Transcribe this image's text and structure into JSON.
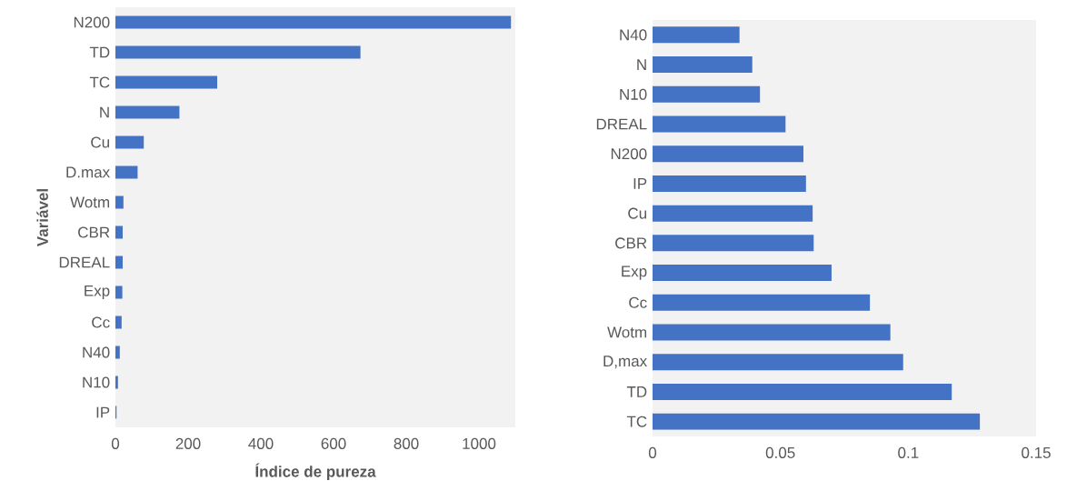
{
  "chart_data": [
    {
      "type": "bar",
      "orientation": "horizontal",
      "xlabel": "Índice de pureza",
      "ylabel": "Variável",
      "categories": [
        "N200",
        "TD",
        "TC",
        "N",
        "Cu",
        "D.max",
        "Wotm",
        "CBR",
        "DREAL",
        "Exp",
        "Cc",
        "N40",
        "N10",
        "IP"
      ],
      "values": [
        1088,
        674,
        280,
        176,
        78,
        61,
        22,
        20,
        20,
        19,
        17,
        12,
        7,
        3
      ],
      "color": "#4472c4",
      "xlim": [
        0,
        1100
      ],
      "xticks": [
        0,
        200,
        400,
        600,
        800,
        1000
      ],
      "grid": false
    },
    {
      "type": "bar",
      "orientation": "horizontal",
      "categories": [
        "N40",
        "N",
        "N10",
        "DREAL",
        "N200",
        "IP",
        "Cu",
        "CBR",
        "Exp",
        "Cc",
        "Wotm",
        "D,max",
        "TD",
        "TC"
      ],
      "values": [
        0.034,
        0.039,
        0.042,
        0.052,
        0.059,
        0.06,
        0.0626,
        0.063,
        0.07,
        0.085,
        0.093,
        0.098,
        0.117,
        0.128
      ],
      "color": "#4472c4",
      "xlim": [
        0,
        0.15
      ],
      "xticks": [
        0,
        0.05,
        0.1,
        0.15
      ],
      "grid": false
    }
  ]
}
